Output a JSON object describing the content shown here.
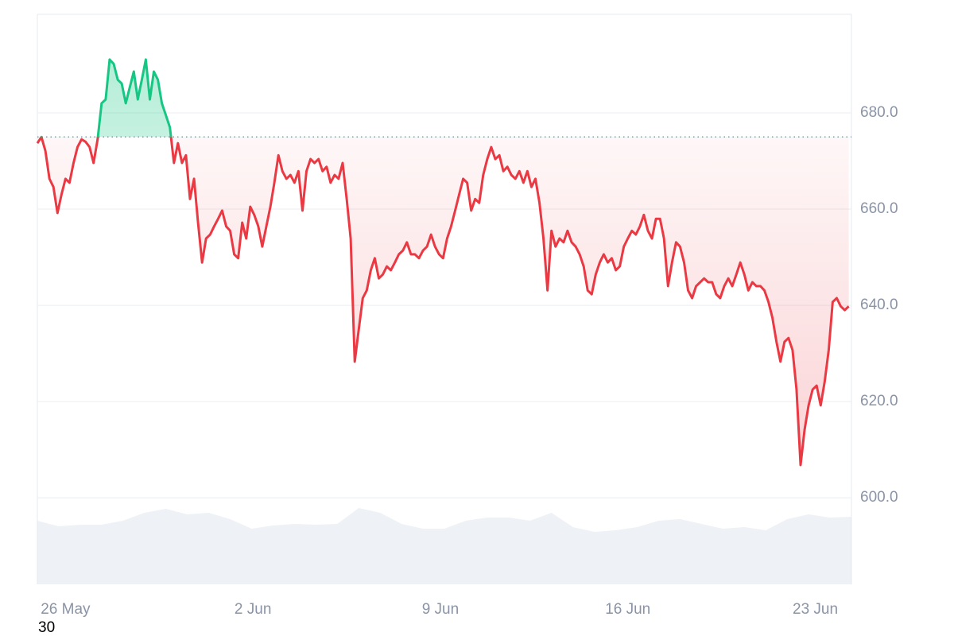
{
  "chart_data": {
    "type": "baseline-line",
    "x": [
      24.95,
      25.1,
      25.25,
      25.4,
      25.55,
      25.7,
      25.85,
      26,
      26.15,
      26.3,
      26.45,
      26.6,
      26.75,
      26.9,
      27.05,
      27.2,
      27.35,
      27.5,
      27.65,
      27.8,
      27.95,
      28.1,
      28.25,
      28.4,
      28.55,
      28.7,
      28.85,
      29,
      29.15,
      29.3,
      29.45,
      29.6,
      29.75,
      29.9,
      30.05,
      30.2,
      30.35,
      30.5,
      30.65,
      30.8,
      30.95,
      31.1,
      31.25,
      31.4,
      31.55,
      31.7,
      31.85,
      32,
      32.15,
      32.3,
      32.45,
      32.6,
      32.75,
      32.9,
      33.05,
      33.2,
      33.35,
      33.5,
      33.65,
      33.8,
      33.95,
      34.1,
      34.25,
      34.4,
      34.55,
      34.7,
      34.85,
      35,
      35.15,
      35.3,
      35.45,
      35.6,
      35.75,
      35.9,
      36.05,
      36.2,
      36.35,
      36.5,
      36.65,
      36.8,
      36.95,
      37.1,
      37.25,
      37.4,
      37.55,
      37.7,
      37.85,
      38,
      38.15,
      38.3,
      38.45,
      38.6,
      38.75,
      38.9,
      39.05,
      39.2,
      39.35,
      39.5,
      39.65,
      39.8,
      39.95,
      40.1,
      40.25,
      40.4,
      40.55,
      40.7,
      40.85,
      41,
      41.15,
      41.3,
      41.45,
      41.6,
      41.75,
      41.9,
      42.05,
      42.2,
      42.35,
      42.5,
      42.65,
      42.8,
      42.95,
      43.1,
      43.25,
      43.4,
      43.55,
      43.7,
      43.85,
      44,
      44.15,
      44.3,
      44.45,
      44.6,
      44.75,
      44.9,
      45.05,
      45.2,
      45.35,
      45.5,
      45.65,
      45.8,
      45.95,
      46.1,
      46.25,
      46.4,
      46.55,
      46.7,
      46.85,
      47,
      47.15,
      47.3,
      47.45,
      47.6,
      47.75,
      47.9,
      48.05,
      48.2,
      48.35,
      48.5,
      48.65,
      48.8,
      48.95,
      49.1,
      49.25,
      49.4,
      49.55,
      49.7,
      49.85,
      50,
      50.15,
      50.3,
      50.45,
      50.6,
      50.75,
      50.9,
      51.05,
      51.2,
      51.35,
      51.5,
      51.65,
      51.8,
      51.95,
      52.1,
      52.25,
      52.4,
      52.55,
      52.7,
      52.85,
      53,
      53.15,
      53.3,
      53.45,
      53.6,
      53.75,
      53.9,
      54.05,
      54.2,
      54.35,
      54.5,
      54.65,
      54.8,
      54.95,
      55.1,
      55.25
    ],
    "values": [
      673.7,
      675.0,
      672.1,
      666.3,
      664.6,
      659.2,
      663.0,
      666.3,
      665.5,
      669.6,
      672.9,
      674.5,
      674.0,
      672.9,
      669.6,
      674.5,
      682.0,
      682.8,
      691.1,
      690.2,
      686.9,
      686.1,
      682.0,
      685.3,
      688.6,
      682.8,
      686.9,
      691.1,
      682.8,
      688.6,
      686.9,
      682.0,
      679.5,
      677.0,
      669.6,
      673.7,
      669.6,
      671.2,
      662.1,
      666.3,
      657.2,
      648.9,
      653.9,
      654.7,
      656.4,
      658.0,
      659.7,
      656.4,
      655.5,
      650.6,
      649.8,
      657.2,
      653.9,
      660.5,
      658.8,
      656.4,
      652.2,
      656.4,
      660.5,
      665.5,
      671.2,
      667.9,
      666.3,
      667.1,
      665.5,
      667.9,
      659.7,
      667.9,
      670.4,
      669.6,
      670.4,
      667.9,
      668.8,
      665.5,
      667.1,
      666.3,
      669.6,
      662.1,
      653.9,
      628.3,
      634.9,
      641.5,
      643.1,
      647.3,
      649.8,
      645.6,
      646.4,
      648.1,
      647.3,
      648.9,
      650.6,
      651.4,
      653.1,
      650.6,
      650.6,
      649.8,
      651.4,
      652.2,
      654.7,
      652.2,
      650.6,
      649.8,
      653.9,
      656.4,
      659.7,
      663.0,
      666.3,
      665.5,
      659.7,
      662.1,
      661.3,
      667.1,
      670.4,
      672.9,
      670.4,
      671.2,
      667.9,
      668.8,
      667.1,
      666.3,
      667.9,
      665.5,
      667.9,
      664.6,
      666.3,
      661.3,
      653.9,
      643.1,
      655.5,
      652.2,
      653.9,
      653.1,
      655.5,
      653.1,
      652.2,
      650.6,
      648.1,
      643.1,
      642.3,
      646.4,
      648.9,
      650.6,
      648.9,
      649.8,
      647.3,
      648.1,
      652.2,
      653.9,
      655.5,
      654.7,
      656.4,
      658.8,
      655.5,
      653.9,
      658.0,
      658.0,
      653.9,
      644.0,
      648.9,
      653.1,
      652.2,
      648.9,
      643.1,
      641.5,
      644.0,
      644.8,
      645.6,
      644.8,
      644.8,
      642.3,
      641.5,
      644.0,
      645.6,
      644.0,
      646.4,
      648.9,
      646.4,
      643.1,
      644.8,
      644.0,
      644.0,
      643.1,
      640.7,
      637.4,
      632.4,
      628.3,
      632.4,
      633.2,
      630.7,
      622.5,
      606.8,
      614.2,
      619.2,
      622.5,
      623.3,
      619.2,
      624.1,
      630.7,
      640.7,
      641.5,
      639.8,
      639.0,
      639.8
    ],
    "baseline": 675,
    "up_color": "#16c784",
    "down_color": "#ea3943",
    "xlim": [
      24.95,
      55.35
    ],
    "ylim": [
      582,
      700.5
    ],
    "xticks": [
      {
        "value": 26,
        "label": "26 May"
      },
      {
        "value": 33,
        "label": "2 Jun"
      },
      {
        "value": 40,
        "label": "9 Jun"
      },
      {
        "value": 47,
        "label": "16 Jun"
      },
      {
        "value": 54,
        "label": "23 Jun"
      }
    ],
    "yticks": [
      {
        "value": 600,
        "label": "600.0"
      },
      {
        "value": 620,
        "label": "620.0"
      },
      {
        "value": 640,
        "label": "640.0"
      },
      {
        "value": 660,
        "label": "660.0"
      },
      {
        "value": 680,
        "label": "680.0"
      }
    ],
    "grid": true,
    "volume": {
      "color": "#eef1f5",
      "ylim": [
        0,
        109
      ],
      "values": [
        80,
        73,
        75,
        75,
        80,
        90,
        95,
        88,
        90,
        82,
        70,
        74,
        76,
        75,
        76,
        96,
        90,
        76,
        70,
        70,
        80,
        84,
        84,
        80,
        90,
        72,
        66,
        68,
        72,
        80,
        82,
        76,
        70,
        72,
        68,
        82,
        88,
        84,
        85
      ]
    },
    "footer": "30"
  }
}
